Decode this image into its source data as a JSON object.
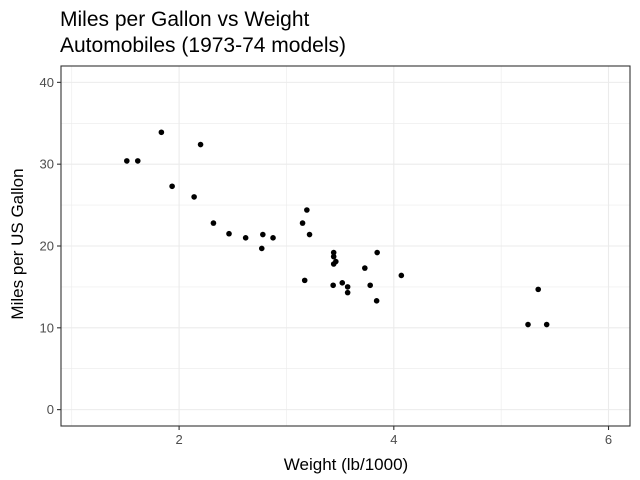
{
  "chart_data": {
    "type": "scatter",
    "title": "Miles per Gallon vs Weight",
    "subtitle": "Automobiles (1973-74 models)",
    "xlabel": "Weight (lb/1000)",
    "ylabel": "Miles per US Gallon",
    "xlim": [
      0.9,
      6.2
    ],
    "ylim": [
      -2,
      42
    ],
    "x_ticks": [
      2,
      4,
      6
    ],
    "x_tick_labels": [
      "2",
      "4",
      "6"
    ],
    "y_ticks": [
      0,
      10,
      20,
      30,
      40
    ],
    "y_tick_labels": [
      "0",
      "10",
      "20",
      "30",
      "40"
    ],
    "grid": true,
    "point_color": "#000000",
    "points": [
      {
        "x": 2.62,
        "y": 21.0
      },
      {
        "x": 2.875,
        "y": 21.0
      },
      {
        "x": 2.32,
        "y": 22.8
      },
      {
        "x": 3.215,
        "y": 21.4
      },
      {
        "x": 3.44,
        "y": 18.7
      },
      {
        "x": 3.46,
        "y": 18.1
      },
      {
        "x": 3.57,
        "y": 14.3
      },
      {
        "x": 3.19,
        "y": 24.4
      },
      {
        "x": 3.15,
        "y": 22.8
      },
      {
        "x": 3.44,
        "y": 19.2
      },
      {
        "x": 3.44,
        "y": 17.8
      },
      {
        "x": 4.07,
        "y": 16.4
      },
      {
        "x": 3.73,
        "y": 17.3
      },
      {
        "x": 3.78,
        "y": 15.2
      },
      {
        "x": 5.25,
        "y": 10.4
      },
      {
        "x": 5.424,
        "y": 10.4
      },
      {
        "x": 5.345,
        "y": 14.7
      },
      {
        "x": 2.2,
        "y": 32.4
      },
      {
        "x": 1.615,
        "y": 30.4
      },
      {
        "x": 1.835,
        "y": 33.9
      },
      {
        "x": 2.465,
        "y": 21.5
      },
      {
        "x": 3.52,
        "y": 15.5
      },
      {
        "x": 3.435,
        "y": 15.2
      },
      {
        "x": 3.84,
        "y": 13.3
      },
      {
        "x": 3.845,
        "y": 19.2
      },
      {
        "x": 1.935,
        "y": 27.3
      },
      {
        "x": 2.14,
        "y": 26.0
      },
      {
        "x": 1.513,
        "y": 30.4
      },
      {
        "x": 3.17,
        "y": 15.8
      },
      {
        "x": 2.77,
        "y": 19.7
      },
      {
        "x": 3.57,
        "y": 15.0
      },
      {
        "x": 2.78,
        "y": 21.4
      }
    ]
  }
}
